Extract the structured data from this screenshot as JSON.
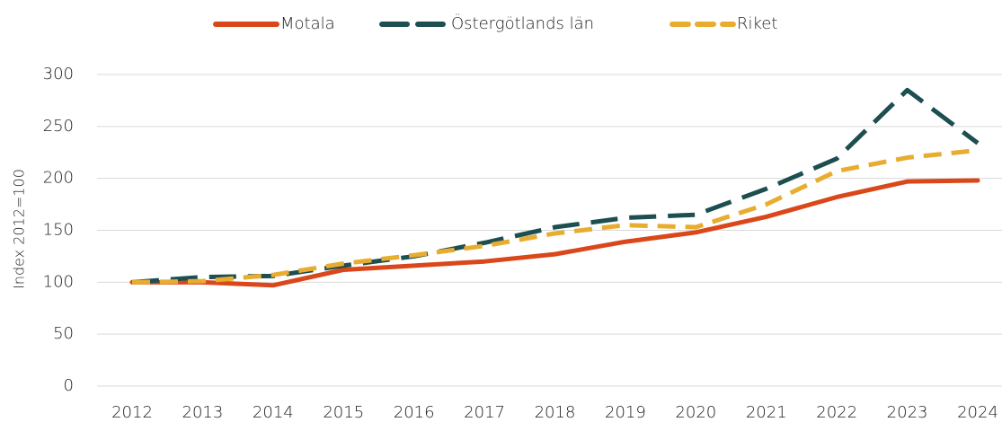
{
  "chart_data": {
    "type": "line",
    "y_label": "Index 2012=100",
    "categories": [
      "2012",
      "2013",
      "2014",
      "2015",
      "2016",
      "2017",
      "2018",
      "2019",
      "2020",
      "2021",
      "2022",
      "2023",
      "2024"
    ],
    "series": [
      {
        "name": "Motala",
        "color": "#d9471a",
        "values": [
          100,
          100,
          97,
          112,
          116,
          120,
          127,
          139,
          148,
          163,
          182,
          197,
          198
        ]
      },
      {
        "name": "Östergötlands län",
        "color": "#1d4e50",
        "values": [
          100,
          105,
          106,
          116,
          125,
          138,
          153,
          162,
          165,
          190,
          219,
          285,
          234
        ]
      },
      {
        "name": "Riket",
        "color": "#e8ac2f",
        "values": [
          100,
          101,
          107,
          118,
          126,
          135,
          147,
          155,
          153,
          175,
          207,
          220,
          227
        ]
      }
    ],
    "ylim": [
      0,
      300
    ],
    "yticks": [
      0,
      50,
      100,
      150,
      200,
      250,
      300
    ],
    "grid": true,
    "legend": "top"
  }
}
